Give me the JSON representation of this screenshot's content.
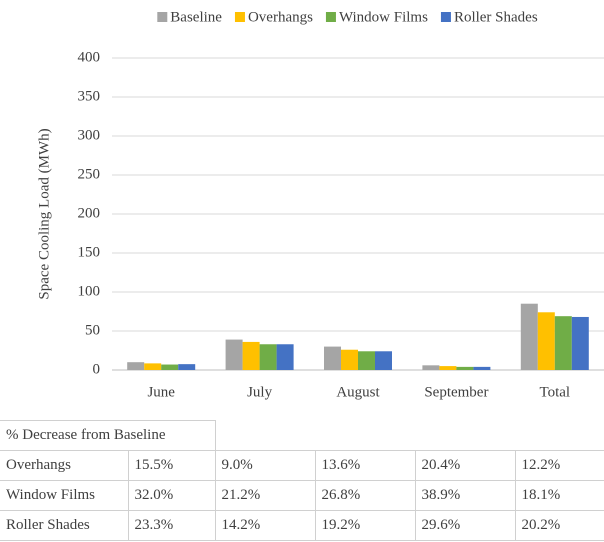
{
  "chart_data": {
    "type": "bar",
    "categories": [
      "June",
      "July",
      "August",
      "September",
      "Total"
    ],
    "series": [
      {
        "name": "Baseline",
        "color": "#a5a5a5",
        "values": [
          10,
          39,
          30,
          6,
          85
        ]
      },
      {
        "name": "Overhangs",
        "color": "#ffc000",
        "values": [
          8.5,
          36,
          26,
          5,
          74
        ]
      },
      {
        "name": "Window Films",
        "color": "#70ad47",
        "values": [
          7,
          33,
          24,
          4,
          69
        ]
      },
      {
        "name": "Roller Shades",
        "color": "#4472c4",
        "values": [
          7.5,
          33,
          24,
          4,
          68
        ]
      }
    ],
    "y_label": "Space Cooling Load (MWh)",
    "ylim": [
      0,
      400
    ],
    "yticks": [
      0,
      50,
      100,
      150,
      200,
      250,
      300,
      350,
      400
    ],
    "grid": true,
    "legend": "top"
  },
  "table": {
    "title": "% Decrease from Baseline",
    "rows": [
      [
        "Overhangs",
        "15.5%",
        "9.0%",
        "13.6%",
        "20.4%",
        "12.2%"
      ],
      [
        "Window Films",
        "32.0%",
        "21.2%",
        "26.8%",
        "38.9%",
        "18.1%"
      ],
      [
        "Roller Shades",
        "23.3%",
        "14.2%",
        "19.2%",
        "29.6%",
        "20.2%"
      ]
    ]
  }
}
